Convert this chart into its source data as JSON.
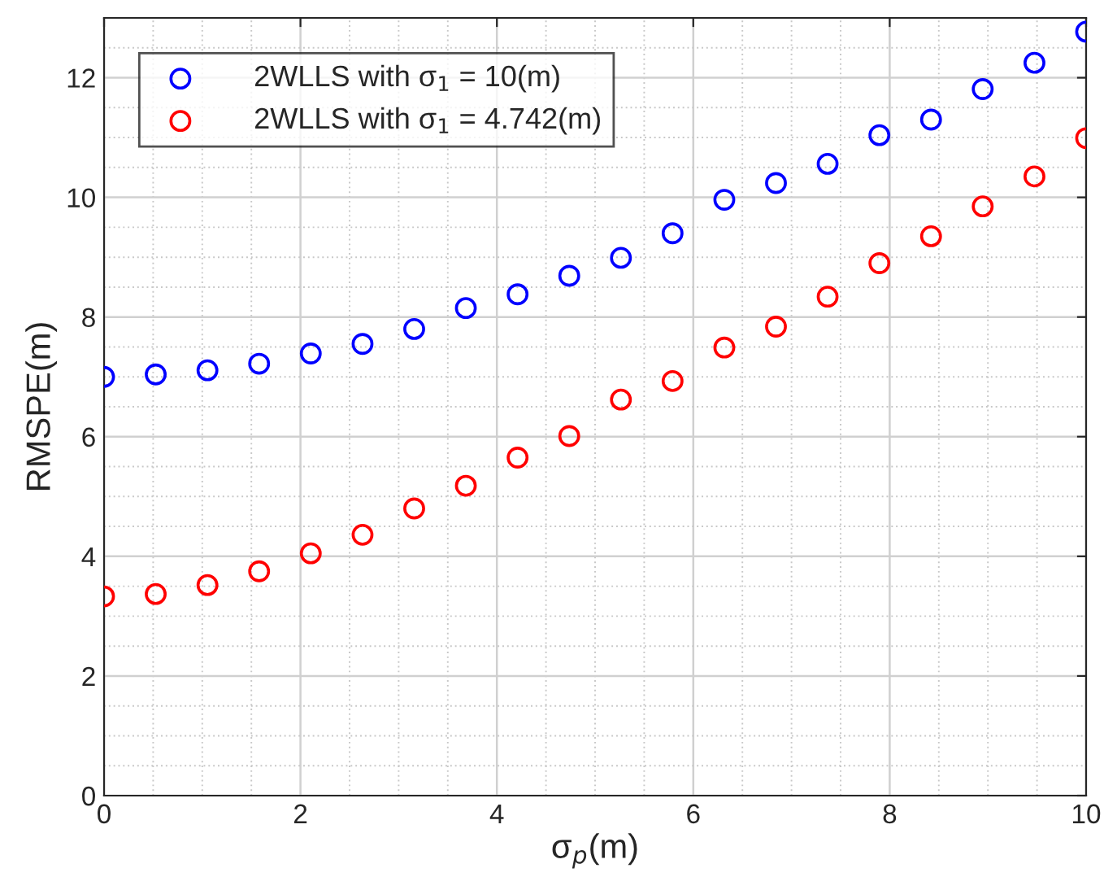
{
  "chart_data": {
    "type": "scatter",
    "xlabel": "σ$_{p}$(m)",
    "ylabel": "RMSPE(m)",
    "x": [
      0,
      0.526,
      1.053,
      1.579,
      2.105,
      2.632,
      3.158,
      3.684,
      4.211,
      4.737,
      5.263,
      5.789,
      6.316,
      6.842,
      7.368,
      7.895,
      8.421,
      8.947,
      9.474,
      10
    ],
    "series": [
      {
        "name": "2WLLS with σ$_{1}$ = 10(m)",
        "color": "#0000ff",
        "values": [
          7.0,
          7.04,
          7.11,
          7.22,
          7.39,
          7.55,
          7.8,
          8.15,
          8.38,
          8.69,
          8.99,
          9.4,
          9.96,
          10.24,
          10.56,
          11.04,
          11.3,
          11.81,
          12.25,
          12.77
        ]
      },
      {
        "name": "2WLLS with σ$_{1}$ = 4.742(m)",
        "color": "#ff0000",
        "values": [
          3.33,
          3.37,
          3.52,
          3.75,
          4.05,
          4.36,
          4.8,
          5.18,
          5.65,
          6.01,
          6.62,
          6.93,
          7.49,
          7.84,
          8.34,
          8.9,
          9.35,
          9.85,
          10.35,
          10.99
        ]
      }
    ],
    "xlim": [
      0,
      10
    ],
    "ylim": [
      0,
      13
    ],
    "xticks": [
      0,
      2,
      4,
      6,
      8,
      10
    ],
    "yticks": [
      0,
      2,
      4,
      6,
      8,
      10,
      12
    ],
    "grid": true,
    "legend": "top left",
    "marker": "circle"
  }
}
